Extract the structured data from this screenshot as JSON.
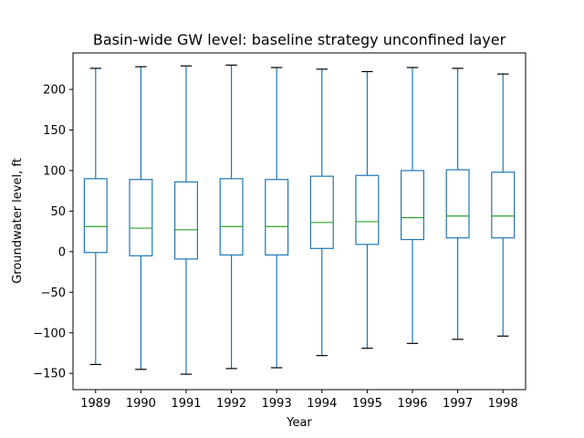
{
  "chart_data": {
    "type": "box",
    "title": "Basin-wide GW level: baseline strategy unconfined layer",
    "xlabel": "Year",
    "ylabel": "Groundwater level, ft",
    "ylim": [
      -170,
      245
    ],
    "yticks": [
      -150,
      -100,
      -50,
      0,
      50,
      100,
      150,
      200
    ],
    "ytick_labels": [
      "−150",
      "−100",
      "−50",
      "0",
      "50",
      "100",
      "150",
      "200"
    ],
    "grid": false,
    "colors": {
      "box": "#1f77b4",
      "median": "#2ca02c",
      "cap": "#000000"
    },
    "categories": [
      "1989",
      "1990",
      "1991",
      "1992",
      "1993",
      "1994",
      "1995",
      "1996",
      "1997",
      "1998"
    ],
    "boxes": [
      {
        "whislo": -139,
        "q1": -1,
        "med": 31,
        "q3": 90,
        "whishi": 226
      },
      {
        "whislo": -145,
        "q1": -5,
        "med": 29,
        "q3": 89,
        "whishi": 228
      },
      {
        "whislo": -151,
        "q1": -9,
        "med": 27,
        "q3": 86,
        "whishi": 229
      },
      {
        "whislo": -144,
        "q1": -4,
        "med": 31,
        "q3": 90,
        "whishi": 230
      },
      {
        "whislo": -143,
        "q1": -4,
        "med": 31,
        "q3": 89,
        "whishi": 227
      },
      {
        "whislo": -128,
        "q1": 4,
        "med": 36,
        "q3": 93,
        "whishi": 225
      },
      {
        "whislo": -119,
        "q1": 9,
        "med": 37,
        "q3": 94,
        "whishi": 222
      },
      {
        "whislo": -113,
        "q1": 15,
        "med": 42,
        "q3": 100,
        "whishi": 227
      },
      {
        "whislo": -108,
        "q1": 17,
        "med": 44,
        "q3": 101,
        "whishi": 226
      },
      {
        "whislo": -104,
        "q1": 17,
        "med": 44,
        "q3": 98,
        "whishi": 219
      }
    ]
  }
}
